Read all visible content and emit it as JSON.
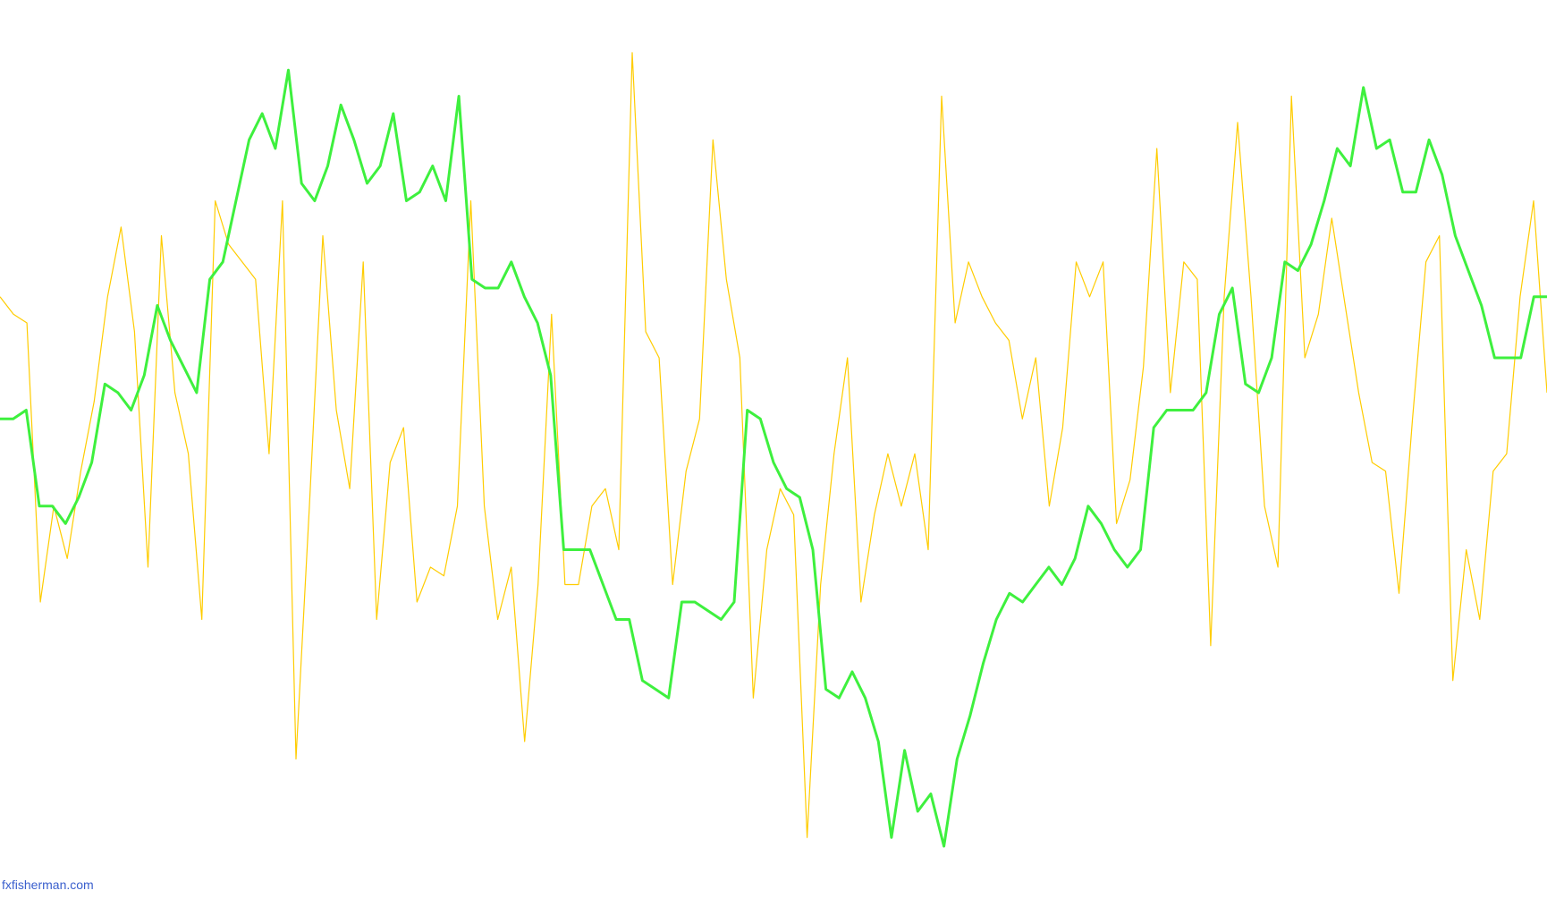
{
  "chart_data": {
    "type": "line",
    "watermark": "fxfisherman.com",
    "ylim": [
      0,
      100
    ],
    "series": [
      {
        "name": "green",
        "color": "#3ef03e",
        "values": [
          53,
          53,
          54,
          43,
          43,
          41,
          44,
          48,
          57,
          56,
          54,
          58,
          66,
          62,
          59,
          56,
          69,
          71,
          78,
          85,
          88,
          84,
          93,
          80,
          78,
          82,
          89,
          85,
          80,
          82,
          88,
          78,
          79,
          82,
          78,
          90,
          69,
          68,
          68,
          71,
          67,
          64,
          58,
          38,
          38,
          38,
          34,
          30,
          30,
          23,
          22,
          21,
          32,
          32,
          31,
          30,
          32,
          54,
          53,
          48,
          45,
          44,
          38,
          22,
          21,
          24,
          21,
          16,
          5,
          15,
          8,
          10,
          4,
          14,
          19,
          25,
          30,
          33,
          32,
          34,
          36,
          34,
          37,
          43,
          41,
          38,
          36,
          38,
          52,
          54,
          54,
          54,
          56,
          65,
          68,
          57,
          56,
          60,
          71,
          70,
          73,
          78,
          84,
          82,
          91,
          84,
          85,
          79,
          79,
          85,
          81,
          74,
          70,
          66,
          60,
          60,
          60,
          67,
          67
        ]
      },
      {
        "name": "yellow",
        "color": "#ffcc00",
        "values": [
          67,
          65,
          64,
          32,
          43,
          37,
          47,
          55,
          67,
          75,
          63,
          36,
          74,
          56,
          49,
          30,
          78,
          73,
          71,
          69,
          49,
          78,
          14,
          43,
          74,
          54,
          45,
          71,
          30,
          48,
          52,
          32,
          36,
          35,
          43,
          78,
          43,
          30,
          36,
          16,
          34,
          65,
          34,
          34,
          43,
          45,
          38,
          95,
          63,
          60,
          34,
          47,
          53,
          85,
          69,
          60,
          21,
          38,
          45,
          42,
          5,
          34,
          49,
          60,
          32,
          42,
          49,
          43,
          49,
          38,
          90,
          64,
          71,
          67,
          64,
          62,
          53,
          60,
          43,
          52,
          71,
          67,
          71,
          41,
          46,
          59,
          84,
          56,
          71,
          69,
          27,
          67,
          87,
          67,
          43,
          36,
          90,
          60,
          65,
          76,
          66,
          56,
          48,
          47,
          33,
          53,
          71,
          74,
          23,
          38,
          30,
          47,
          49,
          67,
          78,
          56
        ]
      }
    ]
  }
}
